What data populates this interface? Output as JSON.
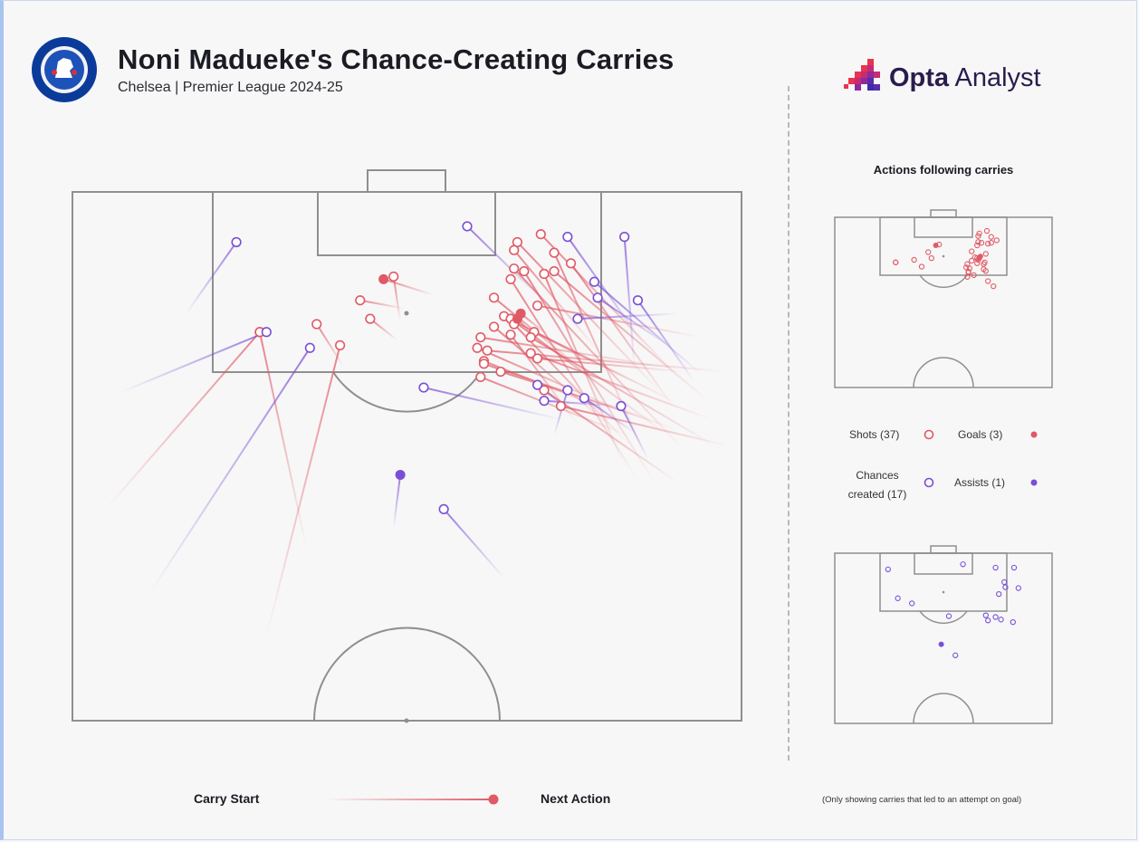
{
  "header": {
    "title": "Noni Madueke's Chance-Creating Carries",
    "subtitle": "Chelsea | Premier League 2024-25",
    "brand_bold": "Opta",
    "brand_light": " Analyst",
    "club_badge_text": "CHELSEA FOOTBALL CLUB"
  },
  "side": {
    "title": "Actions following carries",
    "legend": {
      "shots": "Shots (37)",
      "goals": "Goals (3)",
      "chances_line1": "Chances",
      "chances_line2": "created (17)",
      "assists": "Assists (1)"
    }
  },
  "bottom": {
    "carry_start": "Carry Start",
    "next_action": "Next Action",
    "footnote": "(Only showing carries that led to an attempt on goal)"
  },
  "colors": {
    "shot": "#e05a66",
    "chance": "#7a4fd6",
    "line_pitch": "#8f8f8f",
    "background": "#f7f7f7"
  },
  "chart_data": {
    "type": "scatter",
    "description_units": "pitch coordinates: x = 0 (left touchline) to 100 (right touchline); y = 0 (goal line attacked) to 100 (halfway line)",
    "shots": [
      {
        "end": [
          43.0,
          20.5
        ],
        "start": [
          49.5,
          22.0
        ],
        "goal": false
      },
      {
        "end": [
          44.5,
          24.0
        ],
        "start": [
          48.5,
          28.0
        ],
        "goal": false
      },
      {
        "end": [
          36.5,
          25.0
        ],
        "start": [
          40.5,
          33.0
        ],
        "goal": false
      },
      {
        "end": [
          28.0,
          26.5
        ],
        "start": [
          5.0,
          60.0
        ],
        "goal": false
      },
      {
        "end": [
          40.0,
          29.0
        ],
        "start": [
          29.0,
          84.0
        ],
        "goal": false
      },
      {
        "end": [
          28.0,
          26.5
        ],
        "start": [
          35.0,
          67.5
        ],
        "goal": false
      },
      {
        "end": [
          48.0,
          16.0
        ],
        "start": [
          49.0,
          24.5
        ],
        "goal": false
      },
      {
        "end": [
          66.5,
          9.5
        ],
        "start": [
          88.0,
          38.0
        ],
        "goal": false
      },
      {
        "end": [
          70.0,
          8.0
        ],
        "start": [
          90.5,
          35.0
        ],
        "goal": false
      },
      {
        "end": [
          66.0,
          11.0
        ],
        "start": [
          78.5,
          30.0
        ],
        "goal": false
      },
      {
        "end": [
          72.0,
          11.5
        ],
        "start": [
          85.0,
          48.0
        ],
        "goal": false
      },
      {
        "end": [
          74.5,
          13.5
        ],
        "start": [
          90.0,
          41.0
        ],
        "goal": false
      },
      {
        "end": [
          66.0,
          14.5
        ],
        "start": [
          91.5,
          49.0
        ],
        "goal": false
      },
      {
        "end": [
          67.5,
          15.0
        ],
        "start": [
          87.0,
          55.0
        ],
        "goal": false
      },
      {
        "end": [
          70.5,
          15.5
        ],
        "start": [
          82.5,
          52.0
        ],
        "goal": false
      },
      {
        "end": [
          72.0,
          15.0
        ],
        "start": [
          95.0,
          39.5
        ],
        "goal": false
      },
      {
        "end": [
          65.5,
          16.5
        ],
        "start": [
          84.5,
          54.5
        ],
        "goal": false
      },
      {
        "end": [
          63.0,
          20.0
        ],
        "start": [
          77.5,
          35.0
        ],
        "goal": false
      },
      {
        "end": [
          69.5,
          21.5
        ],
        "start": [
          94.0,
          27.5
        ],
        "goal": false
      },
      {
        "end": [
          64.5,
          23.5
        ],
        "start": [
          90.5,
          40.0
        ],
        "goal": false
      },
      {
        "end": [
          65.5,
          24.0
        ],
        "start": [
          89.0,
          46.0
        ],
        "goal": false
      },
      {
        "end": [
          66.0,
          25.0
        ],
        "start": [
          83.0,
          47.5
        ],
        "goal": false
      },
      {
        "end": [
          63.0,
          25.5
        ],
        "start": [
          80.5,
          44.5
        ],
        "goal": false
      },
      {
        "end": [
          69.0,
          26.5
        ],
        "start": [
          84.0,
          36.0
        ],
        "goal": false
      },
      {
        "end": [
          68.5,
          27.5
        ],
        "start": [
          96.0,
          48.0
        ],
        "goal": false
      },
      {
        "end": [
          65.5,
          27.0
        ],
        "start": [
          75.5,
          44.0
        ],
        "goal": false
      },
      {
        "end": [
          61.0,
          27.5
        ],
        "start": [
          88.0,
          33.0
        ],
        "goal": false
      },
      {
        "end": [
          60.5,
          29.5
        ],
        "start": [
          84.0,
          42.5
        ],
        "goal": false
      },
      {
        "end": [
          62.0,
          30.0
        ],
        "start": [
          98.0,
          34.0
        ],
        "goal": false
      },
      {
        "end": [
          68.5,
          30.5
        ],
        "start": [
          95.5,
          43.0
        ],
        "goal": false
      },
      {
        "end": [
          61.5,
          32.0
        ],
        "start": [
          80.5,
          41.5
        ],
        "goal": false
      },
      {
        "end": [
          61.5,
          32.5
        ],
        "start": [
          90.5,
          45.0
        ],
        "goal": false
      },
      {
        "end": [
          69.5,
          31.5
        ],
        "start": [
          91.5,
          34.0
        ],
        "goal": false
      },
      {
        "end": [
          64.0,
          34.0
        ],
        "start": [
          86.5,
          43.0
        ],
        "goal": false
      },
      {
        "end": [
          61.0,
          35.0
        ],
        "start": [
          83.0,
          46.0
        ],
        "goal": false
      },
      {
        "end": [
          70.5,
          37.5
        ],
        "start": [
          90.5,
          55.0
        ],
        "goal": false
      },
      {
        "end": [
          73.0,
          40.5
        ],
        "start": [
          98.0,
          48.0
        ],
        "goal": false
      },
      {
        "end": [
          46.5,
          16.5
        ],
        "start": [
          54.0,
          19.5
        ],
        "goal": true
      },
      {
        "end": [
          67.0,
          23.0
        ],
        "start": [
          71.0,
          27.0
        ],
        "goal": true
      },
      {
        "end": [
          66.5,
          24.0
        ],
        "start": [
          70.0,
          28.5
        ],
        "goal": true
      }
    ],
    "chances": [
      {
        "end": [
          24.5,
          9.5
        ],
        "start": [
          17.0,
          23.0
        ],
        "assist": false
      },
      {
        "end": [
          29.0,
          26.5
        ],
        "start": [
          7.0,
          38.0
        ],
        "assist": false
      },
      {
        "end": [
          35.5,
          29.5
        ],
        "start": [
          11.5,
          76.0
        ],
        "assist": false
      },
      {
        "end": [
          59.0,
          6.5
        ],
        "start": [
          69.5,
          19.5
        ],
        "assist": false
      },
      {
        "end": [
          74.0,
          8.5
        ],
        "start": [
          85.5,
          29.0
        ],
        "assist": false
      },
      {
        "end": [
          82.5,
          8.5
        ],
        "start": [
          84.0,
          33.5
        ],
        "assist": false
      },
      {
        "end": [
          78.0,
          17.0
        ],
        "start": [
          94.0,
          34.5
        ],
        "assist": false
      },
      {
        "end": [
          78.5,
          20.0
        ],
        "start": [
          89.0,
          29.0
        ],
        "assist": false
      },
      {
        "end": [
          84.5,
          20.5
        ],
        "start": [
          93.0,
          36.0
        ],
        "assist": false
      },
      {
        "end": [
          75.5,
          24.0
        ],
        "start": [
          90.5,
          23.0
        ],
        "assist": false
      },
      {
        "end": [
          52.5,
          37.0
        ],
        "start": [
          73.0,
          43.0
        ],
        "assist": false
      },
      {
        "end": [
          70.5,
          39.5
        ],
        "start": [
          81.5,
          40.5
        ],
        "assist": false
      },
      {
        "end": [
          76.5,
          39.0
        ],
        "start": [
          84.0,
          45.5
        ],
        "assist": false
      },
      {
        "end": [
          82.0,
          40.5
        ],
        "start": [
          86.0,
          50.5
        ],
        "assist": false
      },
      {
        "end": [
          55.5,
          60.0
        ],
        "start": [
          64.5,
          73.0
        ],
        "assist": false
      },
      {
        "end": [
          74.0,
          37.5
        ],
        "start": [
          72.0,
          46.0
        ],
        "assist": false
      },
      {
        "end": [
          69.5,
          36.5
        ],
        "start": [
          74.0,
          41.0
        ],
        "assist": false
      },
      {
        "end": [
          49.0,
          53.5
        ],
        "start": [
          48.0,
          63.5
        ],
        "assist": true
      }
    ]
  }
}
